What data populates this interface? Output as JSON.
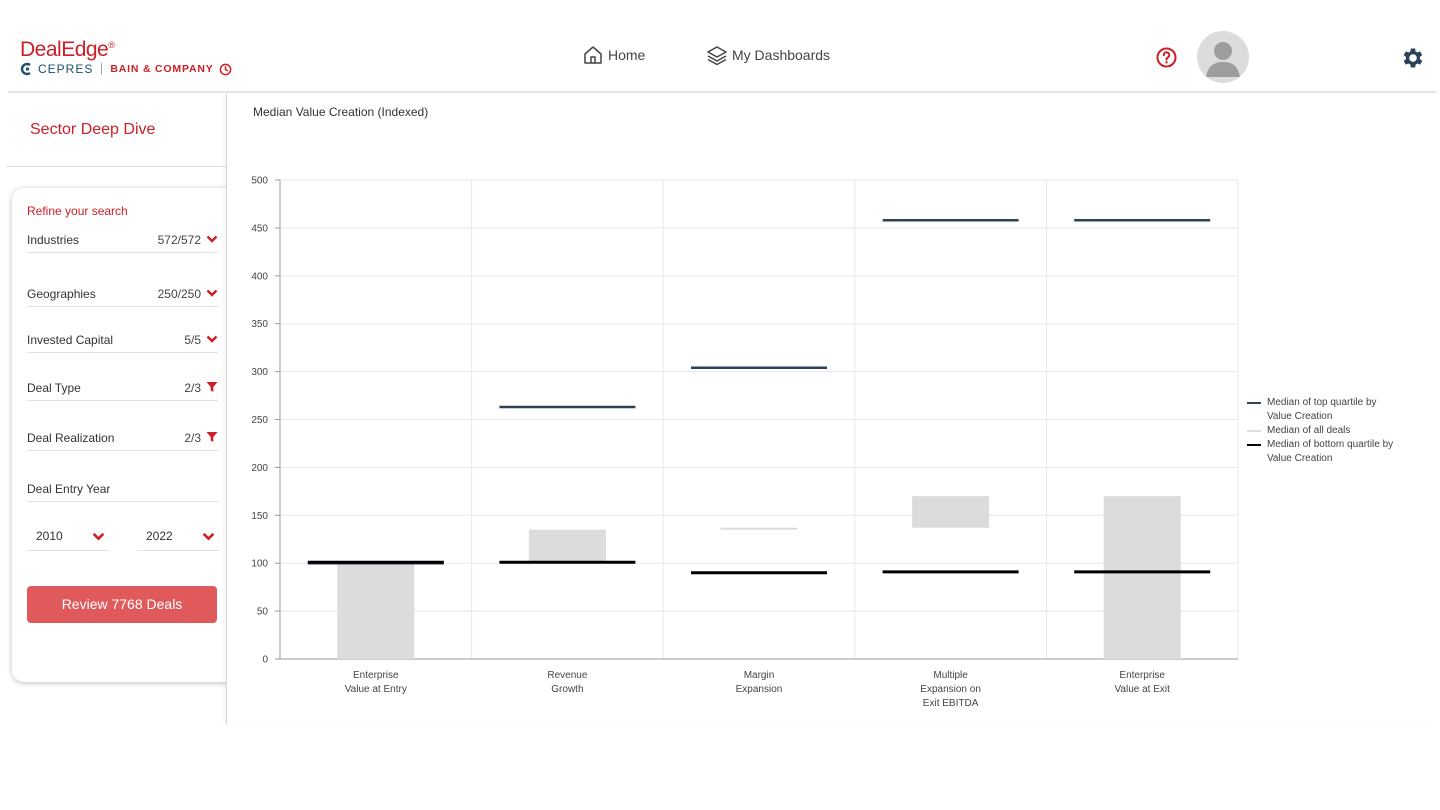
{
  "header": {
    "logo_name": "DealEdge",
    "logo_reg": "®",
    "logo_partner1": "CEPRES",
    "logo_partner2": "BAIN & COMPANY",
    "nav": [
      {
        "label": "Home",
        "icon": "home-icon"
      },
      {
        "label": "My Dashboards",
        "icon": "layers-icon"
      }
    ],
    "help_icon": "help-icon",
    "settings_icon": "gear-icon",
    "brand_color": "#cc1f26"
  },
  "sidebar": {
    "section_title": "Sector Deep Dive",
    "refine_title": "Refine your search",
    "filters": [
      {
        "label": "Industries",
        "count": "572/572",
        "icon": "chevron-down-icon"
      },
      {
        "label": "Geographies",
        "count": "250/250",
        "icon": "chevron-down-icon"
      },
      {
        "label": "Invested Capital",
        "count": "5/5",
        "icon": "chevron-down-icon"
      },
      {
        "label": "Deal Type",
        "count": "2/3",
        "icon": "filter-icon"
      },
      {
        "label": "Deal Realization",
        "count": "2/3",
        "icon": "filter-icon"
      },
      {
        "label": "Deal Entry Year",
        "count": "",
        "icon": ""
      }
    ],
    "year_from": "2010",
    "year_to": "2022",
    "review_button": "Review 7768 Deals",
    "button_color": "#e05a5c"
  },
  "chart_title": "Median Value Creation (Indexed)",
  "legend": [
    {
      "label": "Median of top quartile by Value Creation",
      "color": "#2e4156"
    },
    {
      "label": "Median of all deals",
      "color": "#dcdcdc"
    },
    {
      "label": "Median of bottom quartile by Value Creation",
      "color": "#000000"
    }
  ],
  "chart_data": {
    "type": "bar",
    "title": "Median Value Creation (Indexed)",
    "categories": [
      [
        "Enterprise",
        "Value at Entry"
      ],
      [
        "Revenue",
        "Growth"
      ],
      [
        "Margin",
        "Expansion"
      ],
      [
        "Multiple",
        "Expansion on",
        "Exit EBITDA"
      ],
      [
        "Enterprise",
        "Value at Exit"
      ]
    ],
    "ylim": [
      0,
      500
    ],
    "yticks": [
      0,
      50,
      100,
      150,
      200,
      250,
      300,
      350,
      400,
      450,
      500
    ],
    "grid": true,
    "legend_position": "right",
    "series": [
      {
        "name": "Median of all deals",
        "kind": "floating-bar",
        "color": "#dcdcdc",
        "values": [
          [
            0,
            100
          ],
          [
            100,
            135
          ],
          [
            135,
            137
          ],
          [
            137,
            170
          ],
          [
            0,
            170
          ]
        ]
      },
      {
        "name": "Median of top quartile by Value Creation",
        "kind": "marker",
        "color": "#2e4156",
        "values": [
          100,
          263,
          304,
          458,
          458
        ]
      },
      {
        "name": "Median of bottom quartile by Value Creation",
        "kind": "marker",
        "color": "#000000",
        "values": [
          101,
          101,
          90,
          91,
          91
        ]
      }
    ]
  }
}
